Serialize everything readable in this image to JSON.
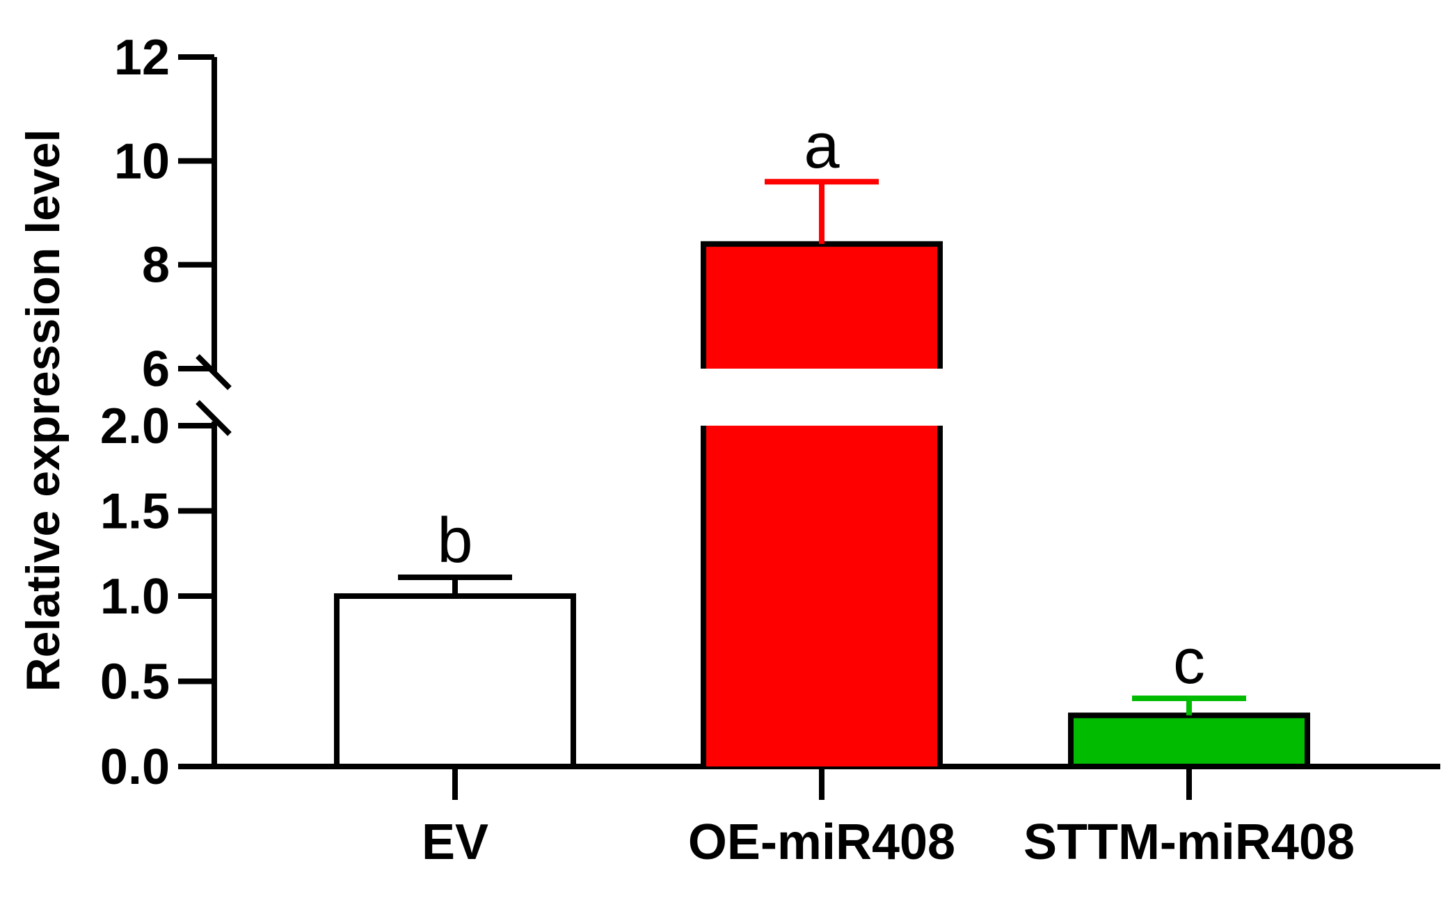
{
  "chart_data": {
    "type": "bar",
    "title": "",
    "xlabel": "",
    "ylabel": "Relative expression level",
    "y_axis_break": true,
    "lower_segment": {
      "ylim": [
        0.0,
        2.0
      ],
      "ticks": [
        0.0,
        0.5,
        1.0,
        1.5,
        2.0
      ],
      "tick_labels": [
        "0.0",
        "0.5",
        "1.0",
        "1.5",
        "2.0"
      ]
    },
    "upper_segment": {
      "ylim": [
        6,
        12
      ],
      "ticks": [
        6,
        8,
        10,
        12
      ],
      "tick_labels": [
        "6",
        "8",
        "10",
        "12"
      ]
    },
    "categories": [
      "EV",
      "OE-miR408",
      "STTM-miR408"
    ],
    "values": [
      1.0,
      8.4,
      0.3
    ],
    "error": [
      0.11,
      1.2,
      0.1
    ],
    "significance": [
      "b",
      "a",
      "c"
    ],
    "grid": false,
    "legend": "none",
    "colors": {
      "bars": [
        "#ffffff",
        "#ff0000",
        "#00bb00"
      ],
      "errors": [
        "#000000",
        "#ff0000",
        "#00bb00"
      ],
      "outline": "#000000"
    }
  }
}
